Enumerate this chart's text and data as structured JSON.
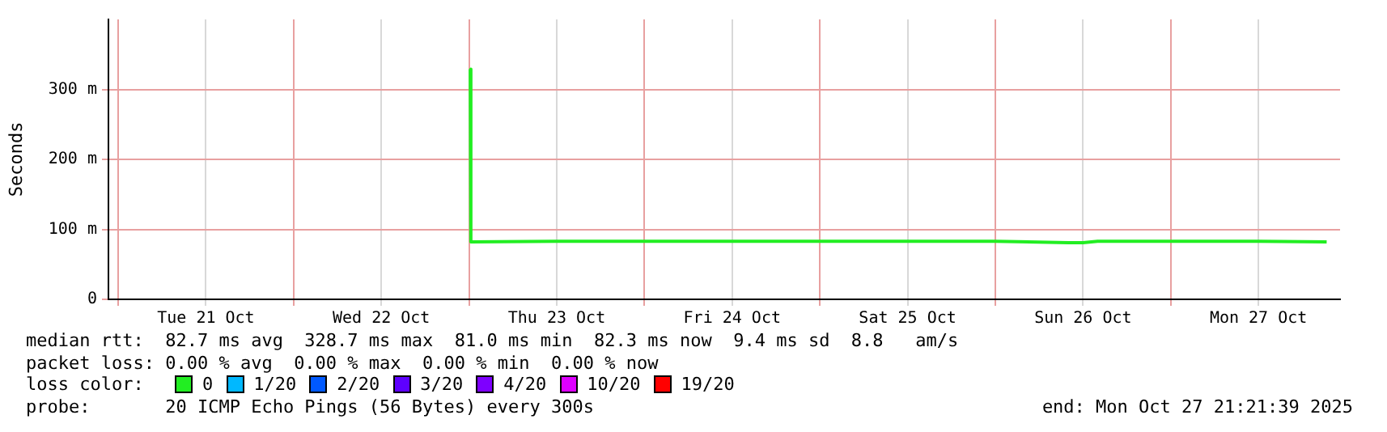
{
  "chart_data": {
    "type": "line",
    "ylabel": "Seconds",
    "legend_title": "loss color:",
    "legend": "bottom",
    "grid": true,
    "marker": "none",
    "line_style": "solid",
    "x": [
      "2025-10-23T00:10",
      "2025-10-23T00:15",
      "2025-10-23T12:00",
      "2025-10-24T00:00",
      "2025-10-24T12:00",
      "2025-10-25T00:00",
      "2025-10-25T12:00",
      "2025-10-26T00:00",
      "2025-10-26T10:00",
      "2025-10-26T12:00",
      "2025-10-26T14:00",
      "2025-10-27T00:00",
      "2025-10-27T12:00",
      "2025-10-27T21:20"
    ],
    "xlim": [
      "2025-10-20T22:40",
      "2025-10-27T23:10"
    ],
    "xticks": [
      {
        "value": "2025-10-21T00:00",
        "label": null
      },
      {
        "value": "2025-10-21T12:00",
        "label": "Tue 21 Oct"
      },
      {
        "value": "2025-10-22T00:00",
        "label": null
      },
      {
        "value": "2025-10-22T12:00",
        "label": "Wed 22 Oct"
      },
      {
        "value": "2025-10-23T00:00",
        "label": null
      },
      {
        "value": "2025-10-23T12:00",
        "label": "Thu 23 Oct"
      },
      {
        "value": "2025-10-24T00:00",
        "label": null
      },
      {
        "value": "2025-10-24T12:00",
        "label": "Fri 24 Oct"
      },
      {
        "value": "2025-10-25T00:00",
        "label": null
      },
      {
        "value": "2025-10-25T12:00",
        "label": "Sat 25 Oct"
      },
      {
        "value": "2025-10-26T00:00",
        "label": null
      },
      {
        "value": "2025-10-26T12:00",
        "label": "Sun 26 Oct"
      },
      {
        "value": "2025-10-27T00:00",
        "label": null
      },
      {
        "value": "2025-10-27T12:00",
        "label": "Mon 27 Oct"
      }
    ],
    "ylim": [
      0,
      400
    ],
    "yticks": [
      0,
      {
        "value": 100,
        "label": "100 m"
      },
      {
        "value": 200,
        "label": "200 m"
      },
      {
        "value": 300,
        "label": "300 m"
      }
    ],
    "series": [
      {
        "name": "0",
        "color": "#22ee22",
        "values": [
          329,
          82,
          83,
          83,
          83,
          83,
          83,
          83,
          81,
          81,
          83,
          83,
          83,
          82
        ]
      },
      {
        "name": "1/20",
        "color": "#00b8ff",
        "values": [
          null,
          null,
          null,
          null,
          null,
          null,
          null,
          null,
          null,
          null,
          null,
          null,
          null,
          null
        ]
      },
      {
        "name": "2/20",
        "color": "#0059ff",
        "values": [
          null,
          null,
          null,
          null,
          null,
          null,
          null,
          null,
          null,
          null,
          null,
          null,
          null,
          null
        ]
      },
      {
        "name": "3/20",
        "color": "#5e00ff",
        "values": [
          null,
          null,
          null,
          null,
          null,
          null,
          null,
          null,
          null,
          null,
          null,
          null,
          null,
          null
        ]
      },
      {
        "name": "4/20",
        "color": "#7e00ff",
        "values": [
          null,
          null,
          null,
          null,
          null,
          null,
          null,
          null,
          null,
          null,
          null,
          null,
          null,
          null
        ]
      },
      {
        "name": "10/20",
        "color": "#dd00ff",
        "values": [
          null,
          null,
          null,
          null,
          null,
          null,
          null,
          null,
          null,
          null,
          null,
          null,
          null,
          null
        ]
      },
      {
        "name": "19/20",
        "color": "#ff0000",
        "values": [
          null,
          null,
          null,
          null,
          null,
          null,
          null,
          null,
          null,
          null,
          null,
          null,
          null,
          null
        ]
      }
    ],
    "annotations": [
      "median rtt:  82.7 ms avg  328.7 ms max  81.0 ms min  82.3 ms now  9.4 ms sd  8.8   am/s",
      "packet loss: 0.00 % avg  0.00 % max  0.00 % min  0.00 % now",
      "probe:       20 ICMP Echo Pings (56 Bytes) every 300s",
      "end: Mon Oct 27 21:21:39 2025"
    ]
  }
}
